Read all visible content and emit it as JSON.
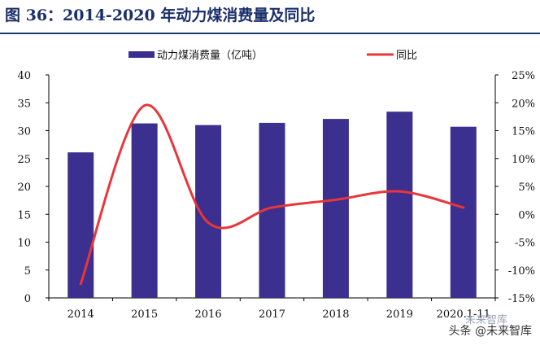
{
  "title": "图 36：2014-2020 年动力煤消费量及同比",
  "watermark": {
    "brand": "未来智库",
    "text": "头条 @未来智库"
  },
  "colors": {
    "bar": "#3b2f8f",
    "line": "#e8363a",
    "title": "#1a2f6b"
  },
  "chart_data": {
    "type": "bar+line",
    "categories": [
      "2014",
      "2015",
      "2016",
      "2017",
      "2018",
      "2019",
      "2020.1-11"
    ],
    "series": [
      {
        "name": "动力煤消费量（亿吨）",
        "type": "bar",
        "axis": "left",
        "values": [
          26.1,
          31.3,
          31.0,
          31.4,
          32.1,
          33.4,
          30.7
        ]
      },
      {
        "name": "同比",
        "type": "line",
        "axis": "right",
        "values": [
          -12.5,
          19.5,
          -1.5,
          1.2,
          2.6,
          4.1,
          1.2
        ]
      }
    ],
    "y_left": {
      "min": 0,
      "max": 40,
      "step": 5,
      "ticks": [
        "0",
        "5",
        "10",
        "15",
        "20",
        "25",
        "30",
        "35",
        "40"
      ]
    },
    "y_right": {
      "min": -15,
      "max": 25,
      "step": 5,
      "ticks": [
        "-15%",
        "-10%",
        "-5%",
        "0%",
        "5%",
        "10%",
        "15%",
        "20%",
        "25%"
      ]
    },
    "legend_position": "top",
    "grid": false
  }
}
